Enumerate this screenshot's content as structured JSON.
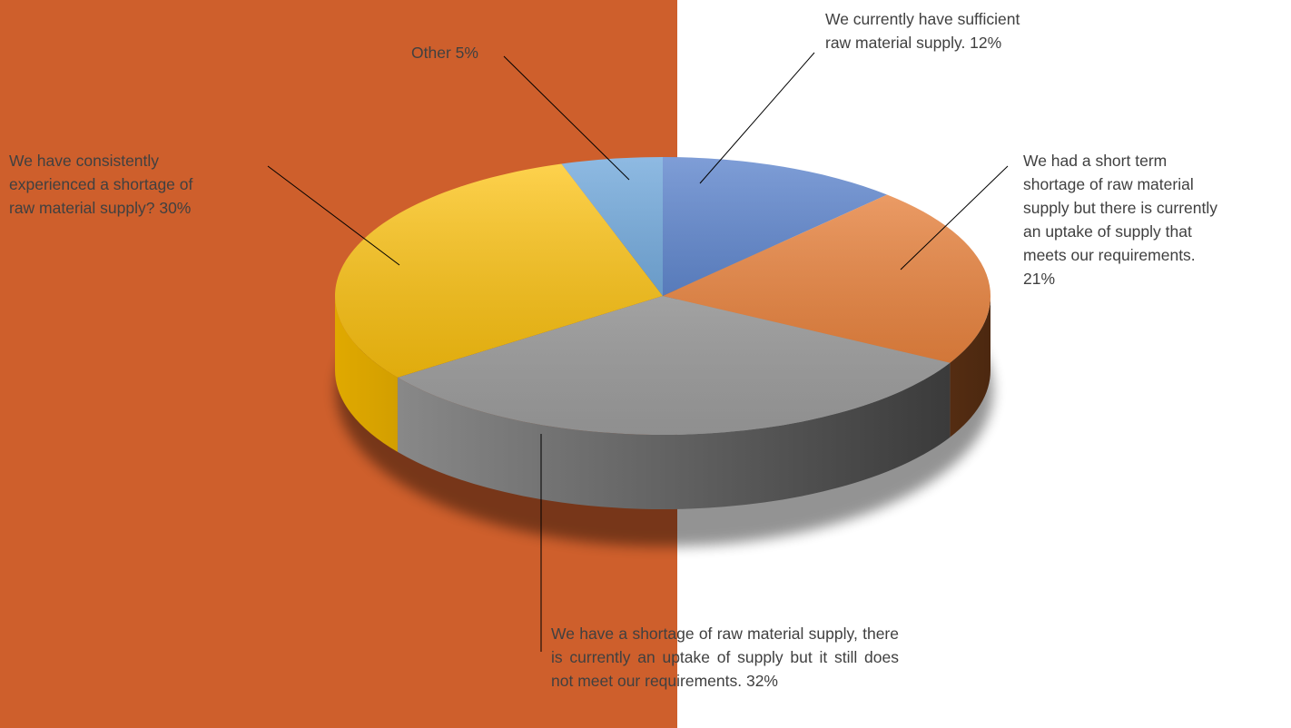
{
  "colors": {
    "left_background": "#CE5F2C",
    "right_background": "#FFFFFF",
    "label_text": "#404040",
    "leader_line": "#000000"
  },
  "chart_data": {
    "type": "pie",
    "style": "3d",
    "title": "",
    "slices": [
      {
        "label": "We currently have sufficient raw material supply.",
        "value": 12,
        "display": "12%",
        "color": "#4472C4",
        "text_lines": [
          "We currently have sufficient",
          "raw material supply. 12%"
        ]
      },
      {
        "label": "We had a short term shortage of raw material supply but there is currently an uptake of supply that meets our requirements.",
        "value": 21,
        "display": "21%",
        "color": "#ED7D31",
        "text_lines": [
          "We had a short term",
          "shortage of raw material",
          "supply but there is currently",
          "an uptake of supply that",
          "meets our requirements.",
          "21%"
        ]
      },
      {
        "label": "We have a shortage of raw material supply, there is currently an uptake of supply but it still does not meet our requirements.",
        "value": 32,
        "display": "32%",
        "color": "#A5A5A5",
        "text": "We have a shortage of raw material supply, there is currently an uptake of supply but it still does not meet our requirements. 32%"
      },
      {
        "label": "We have consistently experienced a shortage of raw material supply?",
        "value": 30,
        "display": "30%",
        "color": "#FFC000",
        "text_lines": [
          "We have consistently",
          "experienced a shortage of",
          "raw material supply?  30%"
        ]
      },
      {
        "label": "Other",
        "value": 5,
        "display": "5%",
        "color": "#5B9BD5",
        "text_lines": [
          "Other 5%"
        ]
      }
    ]
  }
}
